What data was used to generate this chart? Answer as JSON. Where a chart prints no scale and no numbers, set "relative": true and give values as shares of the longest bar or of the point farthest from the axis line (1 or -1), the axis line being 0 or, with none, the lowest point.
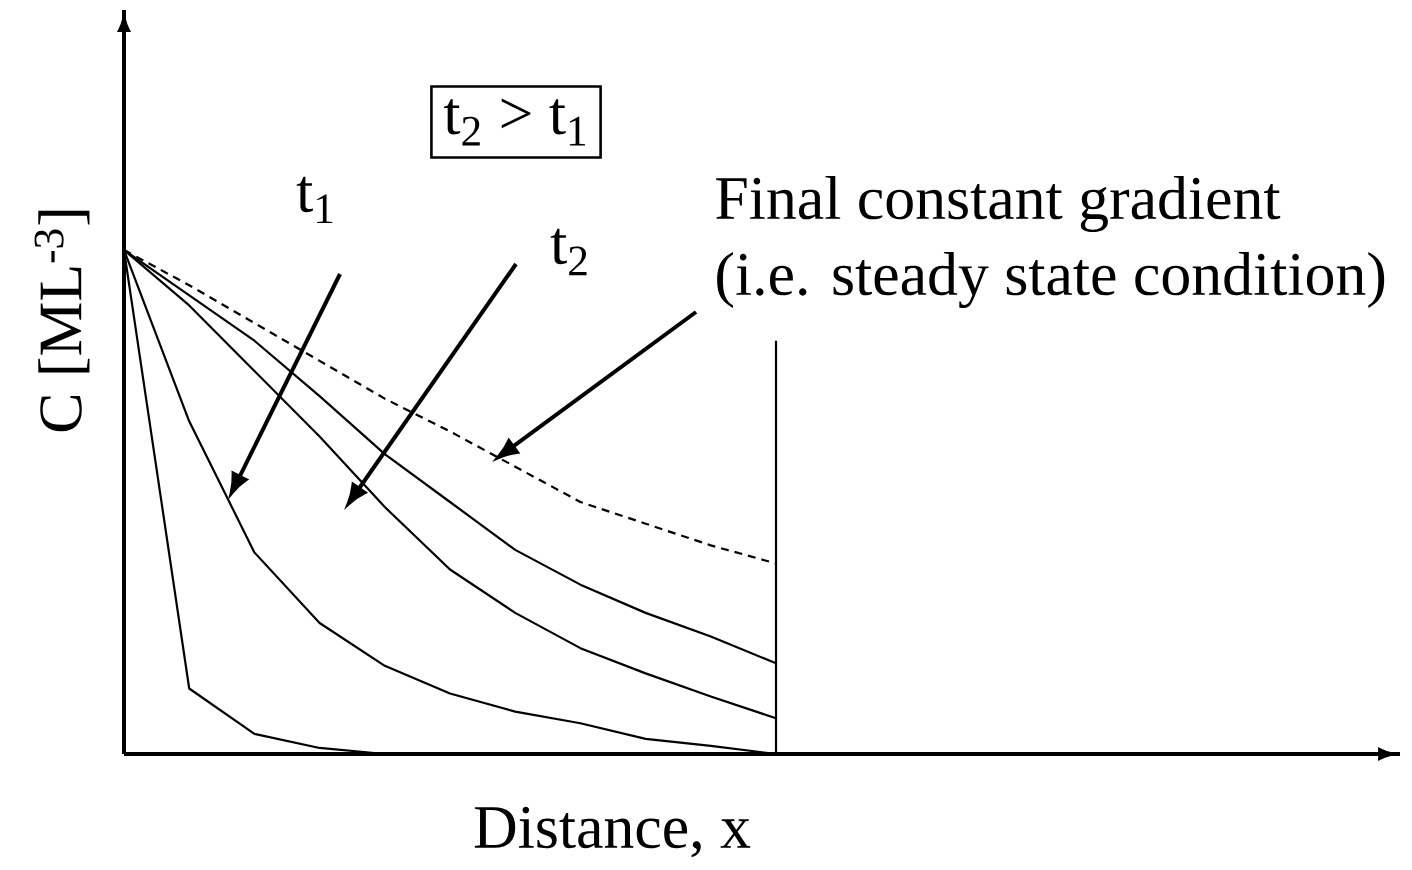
{
  "chart_data": {
    "type": "line",
    "relative": true,
    "xlabel": "Distance, x",
    "ylabel": "C [ML$^{-3}$]",
    "categories": [
      null,
      null,
      null,
      null,
      null,
      null,
      null,
      null,
      null,
      null,
      null
    ],
    "series": [
      {
        "color": "#000000",
        "line_style": "dashed",
        "values": [
          1,
          0.93,
          0.855,
          0.78,
          0.705,
          0.64,
          0.57,
          0.5,
          0.457,
          0.414,
          0.378
        ]
      },
      {
        "color": "#000000",
        "values": [
          1,
          0.91,
          0.82,
          0.71,
          0.595,
          0.5,
          0.405,
          0.336,
          0.28,
          0.233,
          0.18
        ]
      },
      {
        "color": "#000000",
        "values": [
          1,
          0.89,
          0.76,
          0.63,
          0.49,
          0.366,
          0.28,
          0.21,
          0.16,
          0.114,
          0.071
        ]
      },
      {
        "color": "#000000",
        "values": [
          1,
          0.66,
          0.4,
          0.26,
          0.175,
          0.12,
          0.084,
          0.061,
          0.03,
          0.016,
          0
        ]
      },
      {
        "color": "#000000",
        "values": [
          1,
          0.13,
          0.04,
          0.012,
          0,
          0,
          0,
          0,
          0,
          0,
          0
        ]
      }
    ],
    "annotations": [
      "t$_{2}$ > t$_{1}$",
      "t$_{1}$",
      "t$_{2}$",
      "Final constant gradient",
      "(i.e. steady state condition)"
    ],
    "marker": "none"
  }
}
